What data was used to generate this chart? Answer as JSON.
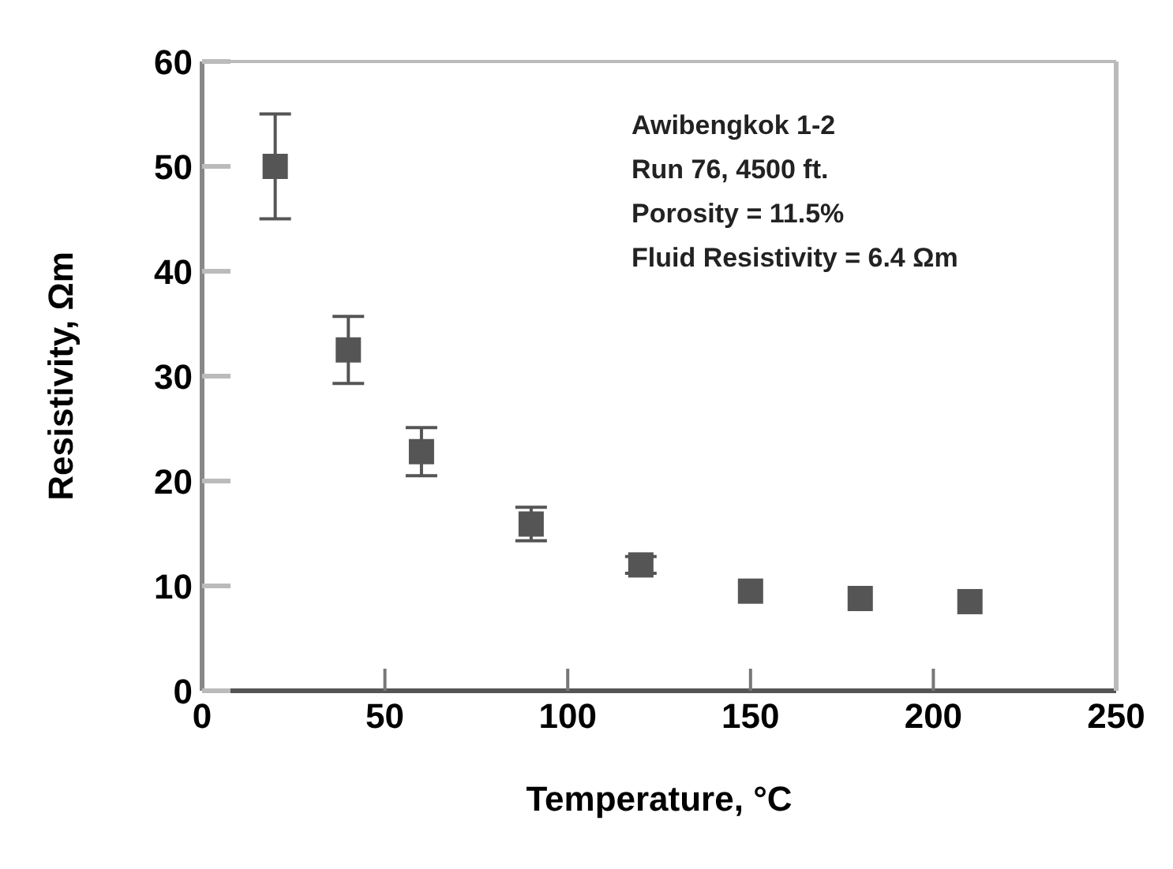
{
  "chart_data": {
    "type": "scatter",
    "xlabel": "Temperature, °C",
    "ylabel": "Resistivity, Ωm",
    "x": [
      20,
      40,
      60,
      90,
      120,
      150,
      180,
      210
    ],
    "series": [
      {
        "color": "#555555",
        "values": [
          50,
          32.5,
          22.8,
          15.9,
          12,
          9.5,
          8.8,
          8.5
        ],
        "errors": [
          5,
          3.2,
          2.3,
          1.6,
          0.8,
          null,
          null,
          null
        ]
      }
    ],
    "marker": "square",
    "grid": false,
    "legend": false,
    "xlim": [
      0,
      250
    ],
    "xticks": [
      0,
      50,
      100,
      150,
      200,
      250
    ],
    "ylim": [
      0,
      60
    ],
    "yticks": [
      0,
      10,
      20,
      30,
      40,
      50,
      60
    ],
    "annotations": [
      "Awibengkok 1-2",
      "Run 76, 4500 ft.",
      "Porosity = 11.5%",
      "Fluid Resistivity = 6.4 Ωm"
    ]
  }
}
